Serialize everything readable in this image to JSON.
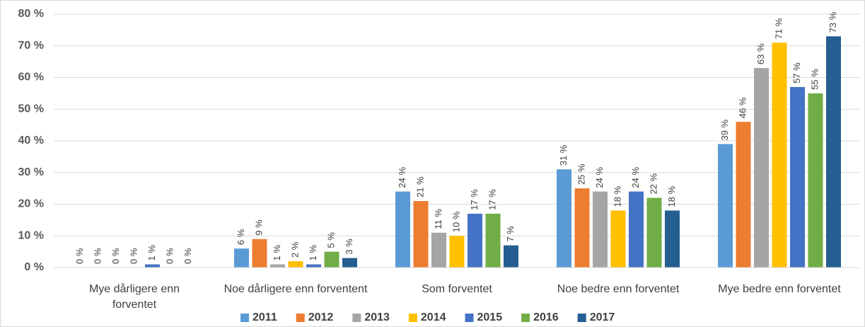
{
  "chart_data": {
    "type": "bar",
    "categories": [
      "Mye dårligere enn forventet",
      "Noe dårligere enn forventent",
      "Som forventet",
      "Noe bedre enn forventet",
      "Mye bedre enn forventet"
    ],
    "series": [
      {
        "name": "2011",
        "color": "#5b9bd5",
        "values": [
          0,
          6,
          24,
          31,
          39
        ],
        "value_labels": [
          "0 %",
          "6 %",
          "24 %",
          "31 %",
          "39 %"
        ]
      },
      {
        "name": "2012",
        "color": "#ed7d31",
        "values": [
          0,
          9,
          21,
          25,
          46
        ],
        "value_labels": [
          "0 %",
          "9 %",
          "21 %",
          "25 %",
          "46 %"
        ]
      },
      {
        "name": "2013",
        "color": "#a5a5a5",
        "values": [
          0,
          1,
          11,
          24,
          63
        ],
        "value_labels": [
          "0 %",
          "1 %",
          "11 %",
          "24 %",
          "63 %"
        ]
      },
      {
        "name": "2014",
        "color": "#ffc000",
        "values": [
          0,
          2,
          10,
          18,
          71
        ],
        "value_labels": [
          "0 %",
          "2 %",
          "10 %",
          "18 %",
          "71 %"
        ]
      },
      {
        "name": "2015",
        "color": "#4472c4",
        "values": [
          1,
          1,
          17,
          24,
          57
        ],
        "value_labels": [
          "1 %",
          "1 %",
          "17 %",
          "24 %",
          "57 %"
        ]
      },
      {
        "name": "2016",
        "color": "#70ad47",
        "values": [
          0,
          5,
          17,
          22,
          55
        ],
        "value_labels": [
          "0 %",
          "5 %",
          "17 %",
          "22 %",
          "55 %"
        ]
      },
      {
        "name": "2017",
        "color": "#255e91",
        "values": [
          0,
          3,
          7,
          18,
          73
        ],
        "value_labels": [
          "0 %",
          "3 %",
          "7 %",
          "18 %",
          "73 %"
        ]
      }
    ],
    "ylim": [
      0,
      80
    ],
    "yticks": [
      {
        "value": 0,
        "label": "0 %"
      },
      {
        "value": 10,
        "label": "10 %"
      },
      {
        "value": 20,
        "label": "20 %"
      },
      {
        "value": 30,
        "label": "30 %"
      },
      {
        "value": 40,
        "label": "40 %"
      },
      {
        "value": 50,
        "label": "50 %"
      },
      {
        "value": 60,
        "label": "60 %"
      },
      {
        "value": 70,
        "label": "70 %"
      },
      {
        "value": 80,
        "label": "80 %"
      }
    ],
    "grid": true,
    "legend": "bottom"
  }
}
